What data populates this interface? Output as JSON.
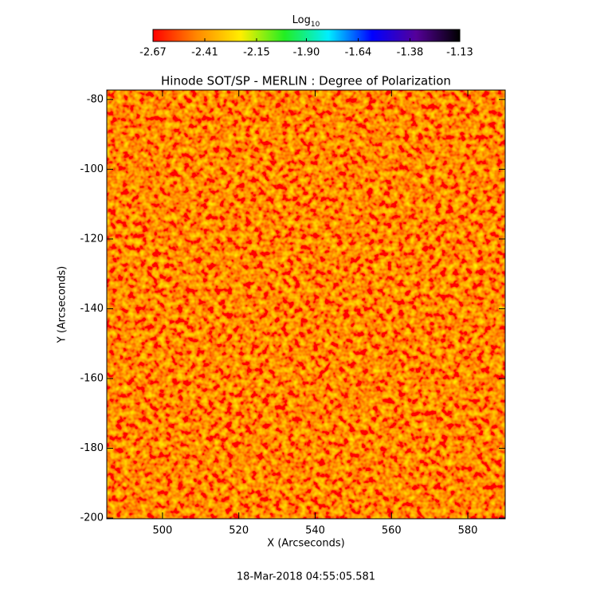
{
  "chart_data": {
    "type": "image",
    "title": "Hinode SOT/SP - MERLIN : Degree of Polarization",
    "x_label": "X (Arcseconds)",
    "y_label": "Y (Arcseconds)",
    "footer": "18-Mar-2018 04:55:05.581",
    "colorbar_label": "Log",
    "colorbar_label_subscript": "10",
    "colorbar_lim": [
      -2.67,
      -1.13
    ],
    "colorbar_ticks": [
      -2.67,
      -2.41,
      -2.15,
      {
        "value": -1.9,
        "label": "-1.90"
      },
      -1.64,
      -1.38,
      -1.13
    ],
    "colormap": [
      "#ff0000",
      "#ff8800",
      "#ffee00",
      "#22ee22",
      "#00eeff",
      "#0000ff",
      "#550099",
      "#000000"
    ],
    "xlim": [
      485.4,
      589.8
    ],
    "xticks": [
      500,
      520,
      540,
      560,
      580
    ],
    "ylim": [
      -200.2,
      -77.3
    ],
    "yticks": [
      -200,
      -180,
      -160,
      -140,
      -120,
      -100,
      -80
    ]
  }
}
